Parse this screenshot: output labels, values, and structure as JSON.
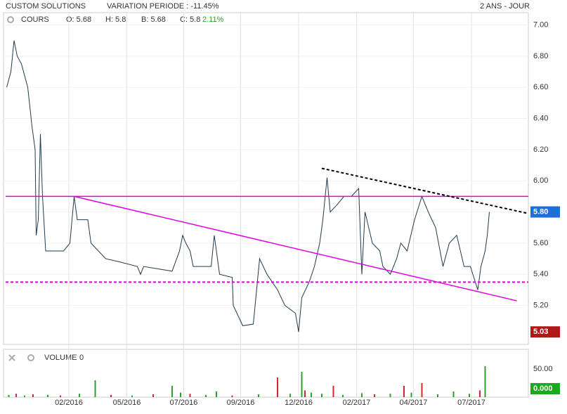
{
  "header": {
    "title": "CUSTOM SOLUTIONS",
    "variation": "VARIATION PERIODE : -11.45%",
    "period": "2 ANS - JOUR"
  },
  "chart_data": [
    {
      "type": "line",
      "legend": {
        "name": "COURS",
        "open": "O: 5.68",
        "high": "H: 5.8",
        "low": "B: 5.68",
        "close": "C: 5.8",
        "change": "2.11%"
      },
      "x": [
        1,
        5,
        8,
        11,
        15,
        21,
        25,
        28,
        29,
        31,
        33,
        35,
        38,
        55,
        61,
        65,
        68,
        78,
        81,
        88,
        95,
        108,
        125,
        128,
        131,
        158,
        165,
        168,
        171,
        175,
        178,
        195,
        198,
        203,
        215,
        216,
        225,
        235,
        241,
        248,
        258,
        265,
        275,
        278,
        281,
        288,
        293,
        298,
        301,
        305,
        308,
        315,
        321,
        328,
        335,
        338,
        341,
        348,
        355,
        358,
        365,
        371,
        375,
        381,
        388,
        395,
        401,
        408,
        415,
        421,
        428,
        435,
        441,
        448,
        451,
        455,
        457,
        459
      ],
      "series": [
        {
          "name": "COURS",
          "color": "#1f3a4d",
          "values": [
            6.6,
            6.7,
            6.9,
            6.8,
            6.75,
            6.6,
            6.35,
            6.2,
            5.65,
            5.75,
            6.3,
            5.9,
            5.55,
            5.55,
            5.6,
            5.9,
            5.75,
            5.75,
            5.6,
            5.55,
            5.5,
            5.48,
            5.45,
            5.4,
            5.45,
            5.42,
            5.55,
            5.65,
            5.6,
            5.55,
            5.45,
            5.45,
            5.65,
            5.4,
            5.38,
            5.2,
            5.07,
            5.08,
            5.5,
            5.4,
            5.3,
            5.2,
            5.15,
            5.03,
            5.25,
            5.35,
            5.45,
            5.6,
            5.75,
            6.02,
            5.8,
            5.85,
            5.9,
            5.9,
            5.95,
            5.4,
            5.8,
            5.6,
            5.55,
            5.45,
            5.4,
            5.5,
            5.6,
            5.55,
            5.75,
            5.9,
            5.8,
            5.7,
            5.45,
            5.6,
            5.65,
            5.45,
            5.45,
            5.3,
            5.45,
            5.55,
            5.65,
            5.8
          ]
        }
      ],
      "lines": [
        {
          "x": [
            0,
            496
          ],
          "y": [
            5.9,
            5.9
          ],
          "color": "#e000e0",
          "dash": "none"
        },
        {
          "x": [
            0,
            496
          ],
          "y": [
            5.35,
            5.35
          ],
          "color": "#e000e0",
          "dash": "4 3"
        },
        {
          "x": [
            65,
            485
          ],
          "y": [
            5.9,
            5.23
          ],
          "color": "#e000e0",
          "dash": "none"
        },
        {
          "x": [
            300,
            496
          ],
          "y": [
            6.08,
            5.79
          ],
          "color": "#000000",
          "dash": "4 3"
        }
      ],
      "last_label": {
        "value": 5.8,
        "label": "5.80"
      },
      "min_label": {
        "value": 5.03,
        "label": "5.03"
      },
      "xlim": [
        0,
        496
      ],
      "ylim": [
        4.95,
        7.07
      ],
      "xticks": [
        {
          "value": 60,
          "label": "02/2016"
        },
        {
          "value": 115,
          "label": "05/2016"
        },
        {
          "value": 169,
          "label": "07/2016"
        },
        {
          "value": 223,
          "label": "09/2016"
        },
        {
          "value": 278,
          "label": "12/2016"
        },
        {
          "value": 333,
          "label": "02/2017"
        },
        {
          "value": 387,
          "label": "04/2017"
        },
        {
          "value": 442,
          "label": "07/2017"
        }
      ],
      "yticks": [
        {
          "value": 5.2,
          "label": "5.20"
        },
        {
          "value": 5.4,
          "label": "5.40"
        },
        {
          "value": 5.6,
          "label": "5.60"
        },
        {
          "value": 5.8,
          "label": "5.80"
        },
        {
          "value": 6.0,
          "label": "6.00"
        },
        {
          "value": 6.2,
          "label": "6.20"
        },
        {
          "value": 6.4,
          "label": "6.40"
        },
        {
          "value": 6.6,
          "label": "6.60"
        },
        {
          "value": 6.8,
          "label": "6.80"
        },
        {
          "value": 7.0,
          "label": "7.00"
        }
      ],
      "grid": true
    },
    {
      "type": "bar",
      "legend": {
        "name": "VOLUME",
        "value": "0"
      },
      "x": [
        3,
        10,
        18,
        26,
        40,
        52,
        70,
        85,
        100,
        120,
        140,
        158,
        166,
        175,
        190,
        200,
        215,
        240,
        258,
        270,
        281,
        284,
        290,
        300,
        311,
        320,
        338,
        350,
        365,
        378,
        385,
        395,
        410,
        425,
        440,
        450,
        455
      ],
      "values": [
        4,
        6,
        3,
        5,
        4,
        3,
        6,
        30,
        4,
        3,
        5,
        20,
        8,
        6,
        4,
        10,
        3,
        5,
        35,
        6,
        45,
        12,
        8,
        6,
        20,
        4,
        7,
        5,
        6,
        20,
        8,
        25,
        5,
        10,
        6,
        12,
        55
      ],
      "colors": [
        "#2ca02c",
        "#d62728",
        "#2ca02c",
        "#d62728",
        "#2ca02c",
        "#d62728",
        "#2ca02c",
        "#2ca02c",
        "#d62728",
        "#2ca02c",
        "#d62728",
        "#2ca02c",
        "#2ca02c",
        "#d62728",
        "#2ca02c",
        "#2ca02c",
        "#d62728",
        "#2ca02c",
        "#d62728",
        "#2ca02c",
        "#2ca02c",
        "#d62728",
        "#2ca02c",
        "#2ca02c",
        "#d62728",
        "#2ca02c",
        "#2ca02c",
        "#d62728",
        "#2ca02c",
        "#d62728",
        "#2ca02c",
        "#d62728",
        "#2ca02c",
        "#2ca02c",
        "#2ca02c",
        "#d62728",
        "#2ca02c"
      ],
      "last_label": {
        "value": 0,
        "label": "0.000"
      },
      "xlim": [
        0,
        496
      ],
      "ylim": [
        0,
        85
      ],
      "yticks": [
        {
          "value": 50,
          "label": "50.00"
        }
      ]
    }
  ]
}
